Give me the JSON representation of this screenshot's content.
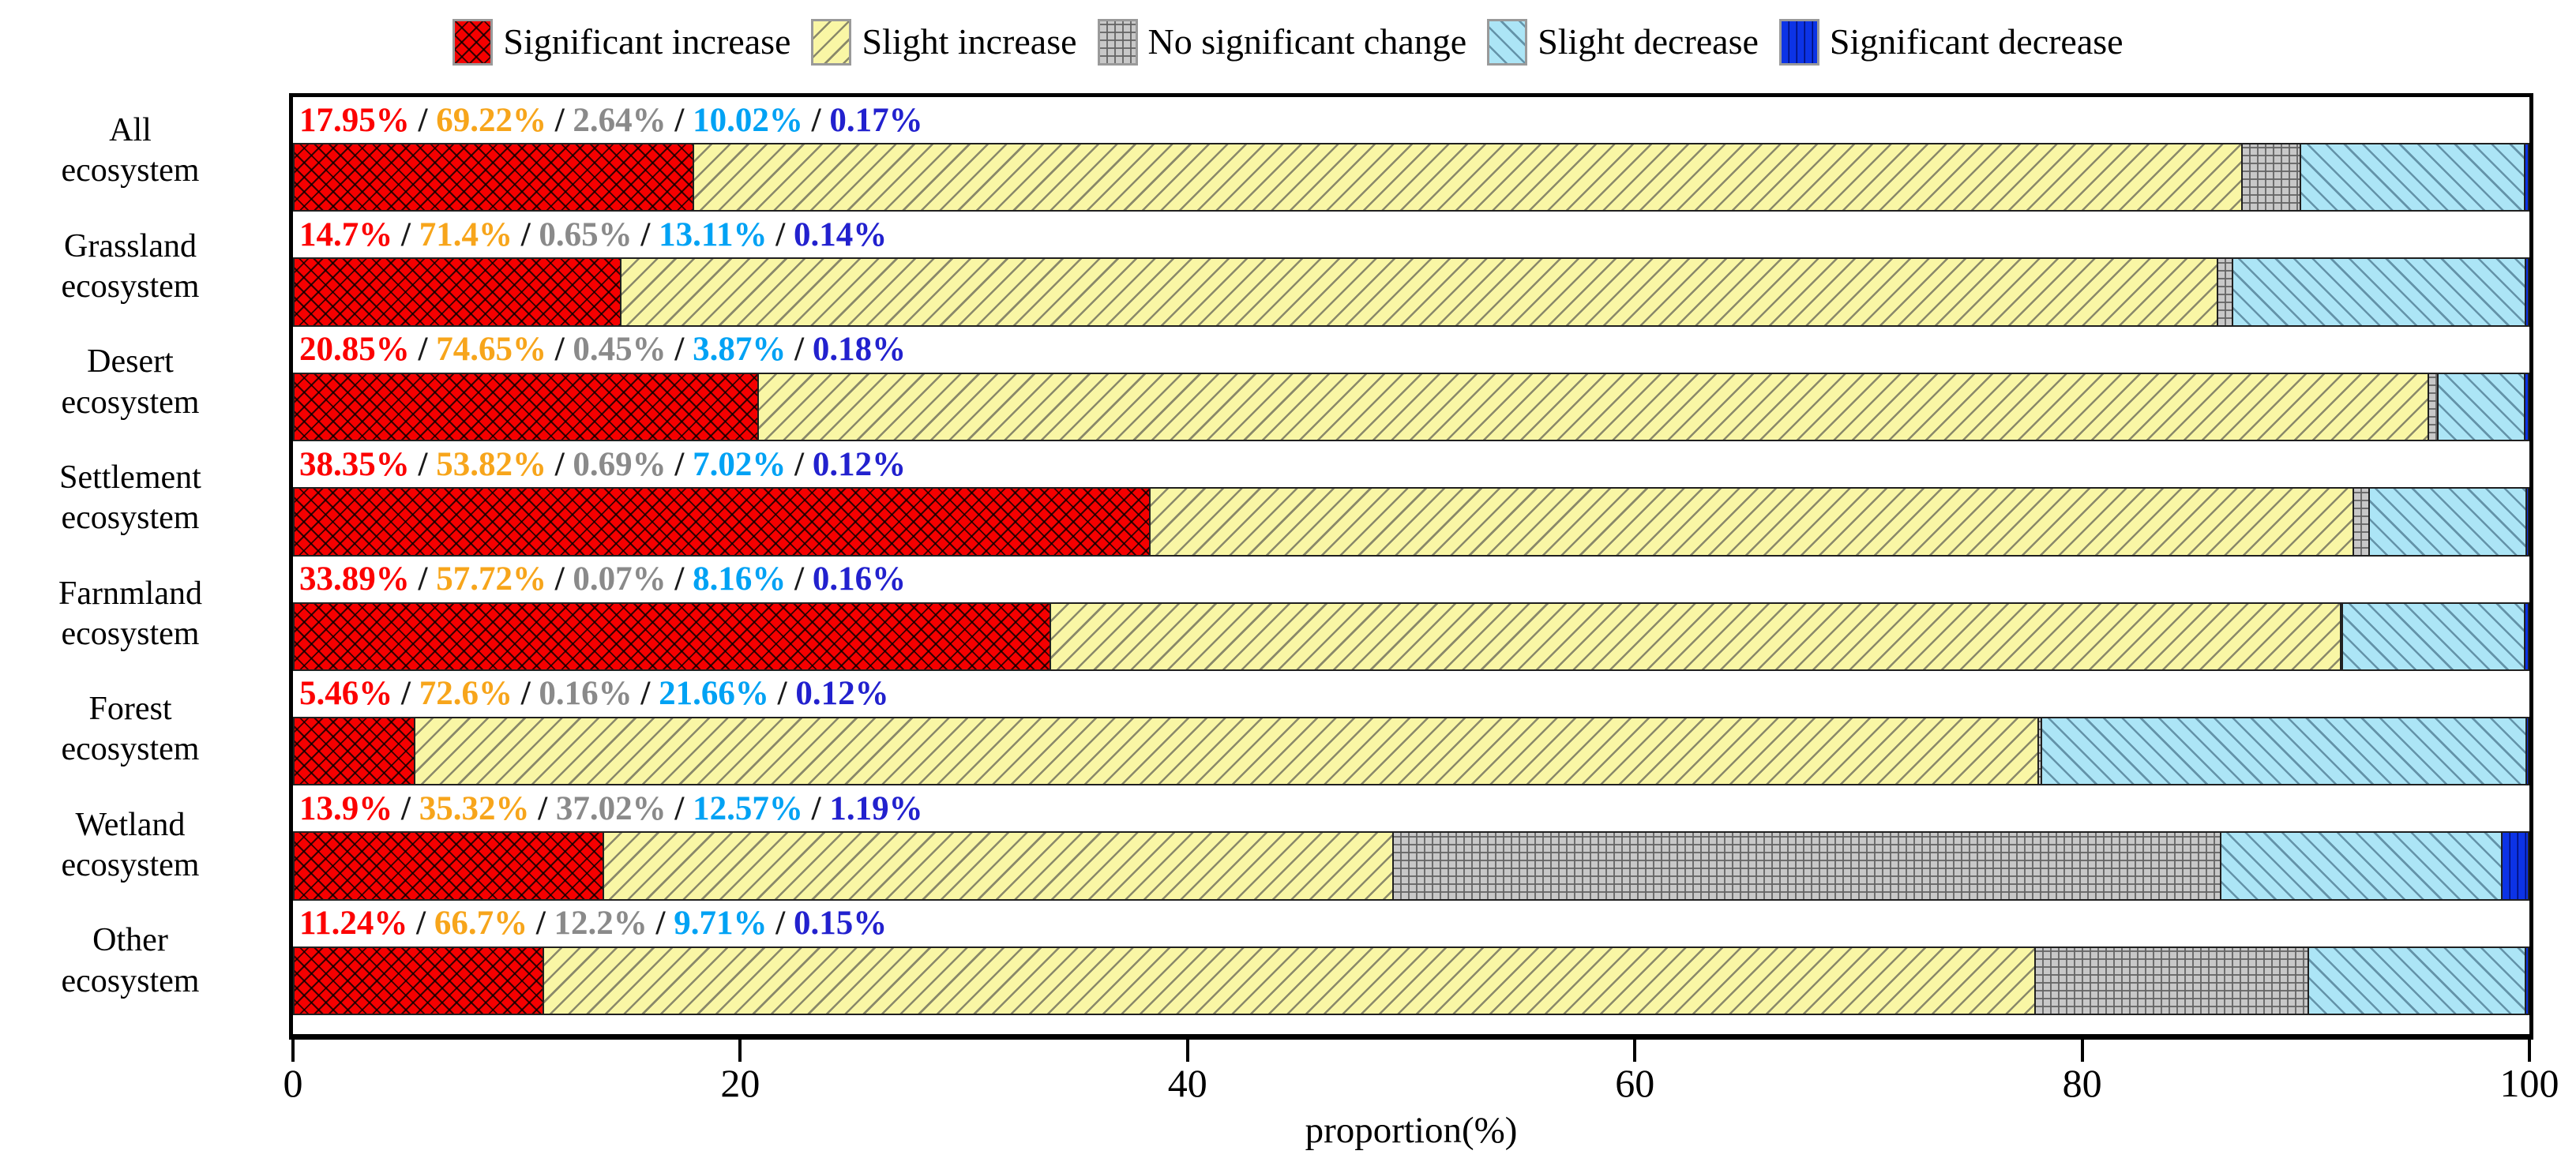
{
  "legend": {
    "items": [
      {
        "key": "sig-inc",
        "label": "Significant increase",
        "fill": "#F50000",
        "label_color": "#FC0000"
      },
      {
        "key": "sli-inc",
        "label": "Slight increase",
        "fill": "#F9F6A5",
        "label_color": "#F7A51B"
      },
      {
        "key": "no-change",
        "label": "No significant change",
        "fill": "#C8C8C8",
        "label_color": "#8A8A8A"
      },
      {
        "key": "sli-dec",
        "label": "Slight decrease",
        "fill": "#ACE5F6",
        "label_color": "#00A2F4"
      },
      {
        "key": "sig-dec",
        "label": "Significant decrease",
        "fill": "#0C33E6",
        "label_color": "#2221CE"
      }
    ]
  },
  "chart_data": {
    "type": "bar",
    "orientation": "horizontal-stacked",
    "title": "",
    "xlabel": "proportion(%)",
    "ylabel": "",
    "xlim": [
      0,
      100
    ],
    "x_ticks": [
      0,
      20,
      40,
      60,
      80,
      100
    ],
    "grid": false,
    "legend_position": "top",
    "value_separator": " / ",
    "categories": [
      "All\necosystem",
      "Grassland\necosystem",
      "Desert\necosystem",
      "Settlement\necosystem",
      "Farnmland\necosystem",
      "Forest\necosystem",
      "Wetland\necosystem",
      "Other\necosystem"
    ],
    "series": [
      {
        "name": "Significant increase",
        "values": [
          17.95,
          14.7,
          20.85,
          38.35,
          33.89,
          5.46,
          13.9,
          11.24
        ],
        "labels": [
          "17.95%",
          "14.7%",
          "20.85%",
          "38.35%",
          "33.89%",
          "5.46%",
          "13.9%",
          "11.24%"
        ]
      },
      {
        "name": "Slight increase",
        "values": [
          69.22,
          71.4,
          74.65,
          53.82,
          57.72,
          72.6,
          35.32,
          66.7
        ],
        "labels": [
          "69.22%",
          "71.4%",
          "74.65%",
          "53.82%",
          "57.72%",
          "72.6%",
          "35.32%",
          "66.7%"
        ]
      },
      {
        "name": "No significant change",
        "values": [
          2.64,
          0.65,
          0.45,
          0.69,
          0.07,
          0.16,
          37.02,
          12.2
        ],
        "labels": [
          "2.64%",
          "0.65%",
          "0.45%",
          "0.69%",
          "0.07%",
          "0.16%",
          "37.02%",
          "12.2%"
        ]
      },
      {
        "name": "Slight decrease",
        "values": [
          10.02,
          13.11,
          3.87,
          7.02,
          8.16,
          21.66,
          12.57,
          9.71
        ],
        "labels": [
          "10.02%",
          "13.11%",
          "3.87%",
          "7.02%",
          "8.16%",
          "21.66%",
          "12.57%",
          "9.71%"
        ]
      },
      {
        "name": "Significant decrease",
        "values": [
          0.17,
          0.14,
          0.18,
          0.12,
          0.16,
          0.12,
          1.19,
          0.15
        ],
        "labels": [
          "0.17%",
          "0.14%",
          "0.18%",
          "0.12%",
          "0.16%",
          "0.12%",
          "1.19%",
          "0.15%"
        ]
      }
    ]
  }
}
